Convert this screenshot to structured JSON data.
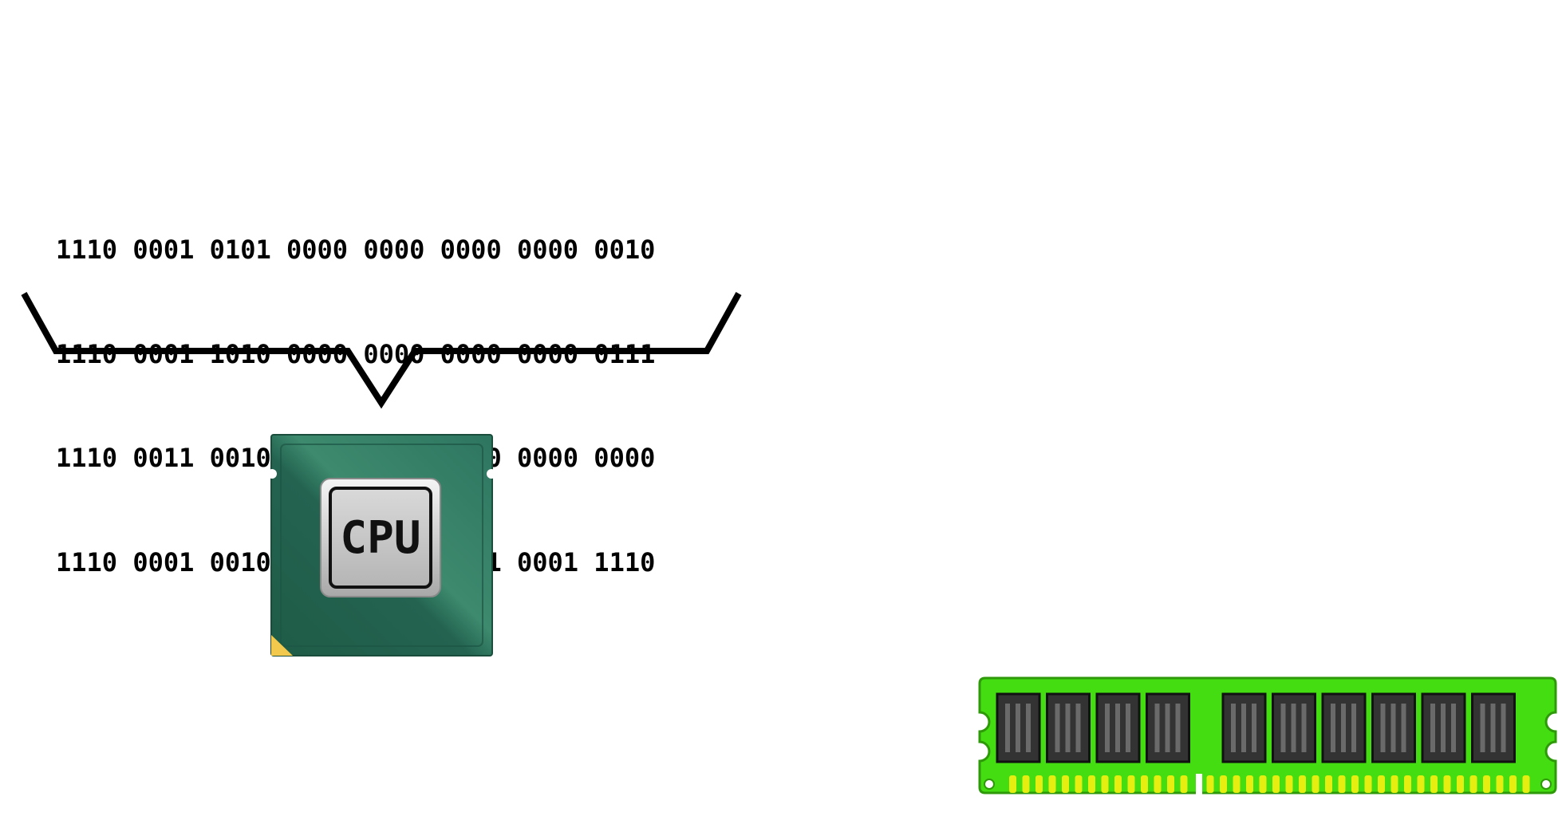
{
  "binary_lines": [
    "1110 0001 0101 0000 0000 0000 0000 0010",
    "1110 0001 1010 0000 0000 0000 0000 0111",
    "1110 0011 0010 0000 1111 0000 0000 0000",
    "1110 0001 0010 1111 1111 1111 0001 1110"
  ],
  "cpu": {
    "label": "CPU"
  },
  "ram": {
    "chip_count_left": 4,
    "chip_count_right": 6
  },
  "colors": {
    "cpu_board": "#2a6b55",
    "cpu_board_highlight": "#3d8a6e",
    "cpu_corner": "#f2c94c",
    "cpu_die": "#bdbdbd",
    "ram_board": "#44dd11",
    "ram_chip": "#333333",
    "ram_contact": "#e6ee11",
    "brace": "#000000"
  }
}
